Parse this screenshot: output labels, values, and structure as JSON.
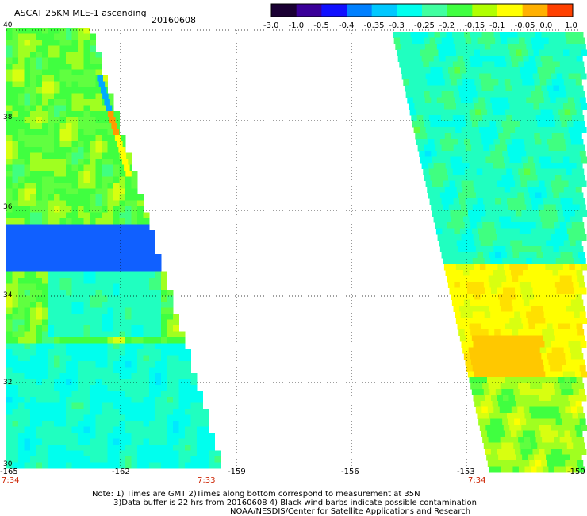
{
  "header": {
    "title": "ASCAT 25KM MLE-1 ascending",
    "date": "20160608"
  },
  "colorbar": {
    "labels": [
      "-3.0",
      "-1.0",
      "-0.5",
      "-0.4",
      "-0.35",
      "-0.3",
      "-0.25",
      "-0.2",
      "-0.15",
      "-0.1",
      "-0.05",
      "0.0",
      "1.0"
    ],
    "colors": [
      "#1a0033",
      "#3a0099",
      "#1010ff",
      "#0080ff",
      "#00c8ff",
      "#00ffee",
      "#40ffa0",
      "#40ff40",
      "#b0ff00",
      "#ffff00",
      "#ffb000",
      "#ff4000"
    ]
  },
  "axes": {
    "lat_labels": [
      "40",
      "38",
      "36",
      "34",
      "32",
      "30"
    ],
    "lon_labels": [
      "-165",
      "-162",
      "-159",
      "-156",
      "-153",
      "-150"
    ]
  },
  "pass_times": {
    "left_start": "7:34",
    "left_end": "7:33",
    "right_start": "7:34"
  },
  "notes": {
    "line1": "Note: 1) Times are GMT 2)Times along bottom correspond to measurement at 35N",
    "line2": "3)Data buffer is 22 hrs from 20160608 4) Black wind barbs indicate possible contamination",
    "line3": "NOAA/NESDIS/Center for Satellite Applications and Research"
  }
}
